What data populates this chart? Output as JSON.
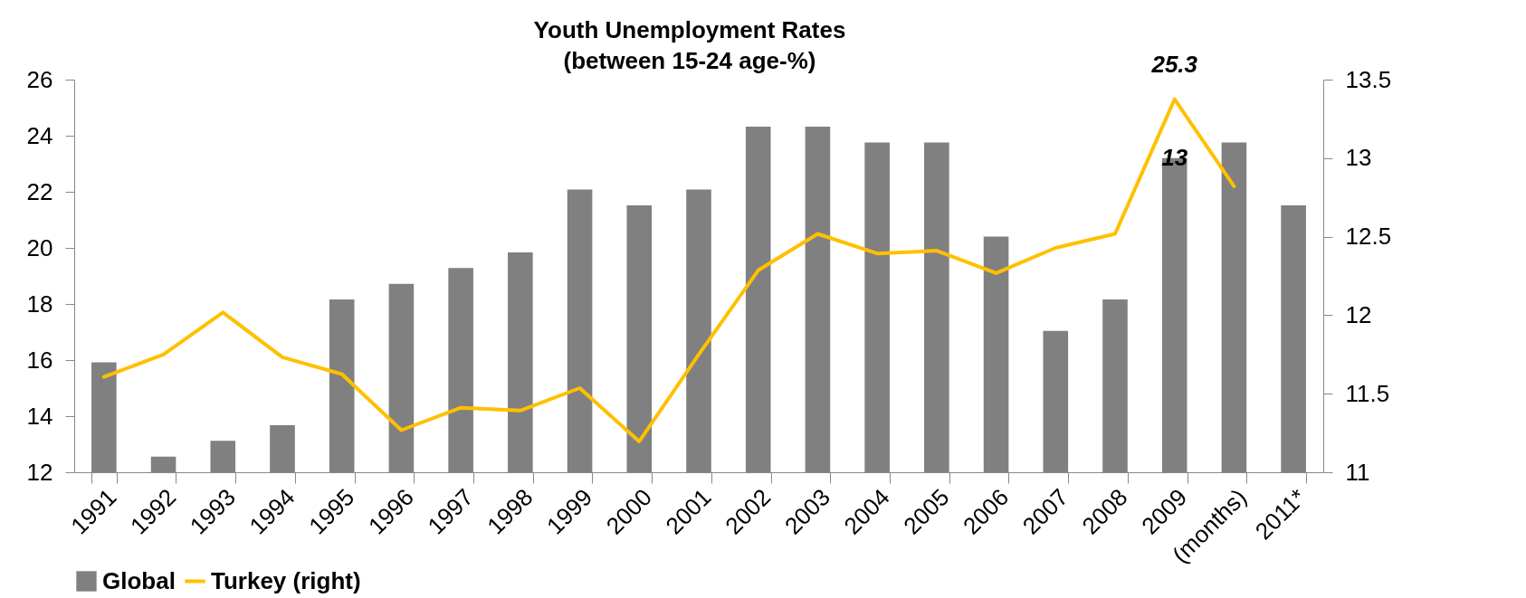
{
  "chart_data": {
    "type": "bar",
    "title": [
      "Youth Unemployment Rates",
      "(between 15-24 age-%)"
    ],
    "categories": [
      "1991",
      "1992",
      "1993",
      "1994",
      "1995",
      "1996",
      "1997",
      "1998",
      "1999",
      "2000",
      "2001",
      "2002",
      "2003",
      "2004",
      "2005",
      "2006",
      "2007",
      "2008",
      "2009",
      "(months)",
      "2011*"
    ],
    "series": [
      {
        "name": "Global",
        "type": "bar",
        "axis": "y2",
        "color": "#808080",
        "values": [
          11.7,
          11.1,
          11.2,
          11.3,
          12.1,
          12.2,
          12.3,
          12.4,
          12.8,
          12.7,
          12.8,
          13.2,
          13.2,
          13.1,
          13.1,
          12.5,
          11.9,
          12.1,
          13.0,
          13.1,
          12.7
        ],
        "value_labels": [
          null,
          null,
          null,
          null,
          null,
          null,
          null,
          null,
          null,
          null,
          null,
          null,
          null,
          null,
          null,
          null,
          null,
          null,
          "13",
          null,
          null
        ]
      },
      {
        "name": "Turkey (right)",
        "type": "line",
        "color": "#ffc000",
        "values": [
          15.4,
          16.2,
          17.7,
          16.1,
          15.5,
          13.5,
          14.3,
          14.2,
          15.0,
          13.1,
          16.2,
          19.2,
          20.5,
          19.8,
          19.9,
          19.1,
          20.0,
          20.5,
          25.3,
          22.2,
          null
        ],
        "value_labels": [
          null,
          null,
          null,
          null,
          null,
          null,
          null,
          null,
          null,
          null,
          null,
          null,
          null,
          null,
          null,
          null,
          null,
          null,
          "25.3",
          null,
          null
        ]
      }
    ],
    "ylim": [
      12,
      26
    ],
    "yticks": [
      12,
      14,
      16,
      18,
      20,
      22,
      24,
      26
    ],
    "y2lim": [
      11,
      13.5
    ],
    "y2ticks": [
      11,
      11.5,
      12,
      12.5,
      13,
      13.5
    ],
    "grid": false,
    "legend": "bottom"
  }
}
